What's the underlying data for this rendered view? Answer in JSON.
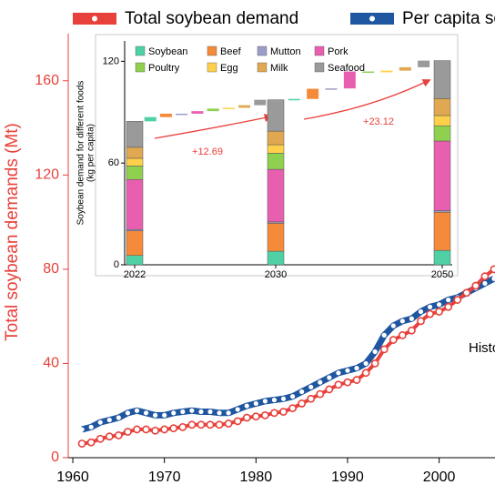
{
  "chart_data": [
    {
      "type": "line",
      "y_label": "Total soybean demands (Mt)",
      "annotation": "Historical",
      "x": [
        1961,
        1962,
        1963,
        1964,
        1965,
        1966,
        1967,
        1968,
        1969,
        1970,
        1971,
        1972,
        1973,
        1974,
        1975,
        1976,
        1977,
        1978,
        1979,
        1980,
        1981,
        1982,
        1983,
        1984,
        1985,
        1986,
        1987,
        1988,
        1989,
        1990,
        1991,
        1992,
        1993,
        1994,
        1995,
        1996,
        1997,
        1998,
        1999,
        2000,
        2001,
        2002,
        2003,
        2004,
        2005,
        2006
      ],
      "xlim": [
        1959.5,
        2006.1
      ],
      "xticks": [
        1960,
        1970,
        1980,
        1990,
        2000
      ],
      "ylim": [
        0,
        180
      ],
      "yticks": [
        0,
        40,
        80,
        120,
        160
      ],
      "series": [
        {
          "name": "Total soybean demand",
          "color": "#e8403a",
          "values": [
            6,
            6.5,
            8,
            9,
            9.5,
            11,
            12,
            12,
            11.5,
            12,
            12.5,
            13,
            14,
            14,
            14,
            14,
            14.5,
            15.5,
            17,
            17.5,
            18,
            19,
            19.5,
            21,
            23,
            25,
            27,
            29,
            31,
            32,
            33,
            36,
            40,
            46,
            50,
            52,
            54,
            58,
            61,
            62,
            64,
            67,
            70,
            73,
            77,
            80
          ]
        },
        {
          "name": "Per capita soybean demand",
          "color": "#1f56a0",
          "values": [
            12,
            13,
            15,
            16,
            17,
            19,
            20,
            19,
            18,
            18,
            19,
            19.5,
            20,
            19.5,
            19.5,
            19,
            19,
            20.5,
            22,
            23,
            24,
            24.5,
            25,
            26,
            28,
            30,
            32,
            34,
            36,
            37,
            38,
            40,
            45,
            52,
            56,
            58,
            59,
            62,
            64,
            65,
            67,
            68,
            70,
            72,
            74,
            76
          ]
        }
      ]
    },
    {
      "type": "bar",
      "stacked": true,
      "y_label": [
        "Soybean demand for different foods",
        "(kg per capita)"
      ],
      "categories": [
        "2022",
        "2030",
        "2050"
      ],
      "ylim": [
        0,
        132
      ],
      "yticks": [
        0,
        60,
        120
      ],
      "annotations": [
        "+12.69",
        "+23.12"
      ],
      "series": [
        {
          "name": "Soybean",
          "color": "#4fd1a5",
          "values": [
            5.5,
            8,
            8.5
          ]
        },
        {
          "name": "Beef",
          "color": "#f58a3a",
          "values": [
            14.5,
            16.5,
            22.5
          ]
        },
        {
          "name": "Mutton",
          "color": "#9c9cc8",
          "values": [
            0.8,
            0.8,
            1
          ]
        },
        {
          "name": "Pork",
          "color": "#e85fb0",
          "values": [
            29.5,
            31,
            41
          ]
        },
        {
          "name": "Poultry",
          "color": "#8fd14f",
          "values": [
            8,
            9.5,
            9
          ]
        },
        {
          "name": "Egg",
          "color": "#ffd04a",
          "values": [
            4.5,
            5,
            6
          ]
        },
        {
          "name": "Milk",
          "color": "#e0a850",
          "values": [
            6.5,
            8,
            10
          ]
        },
        {
          "name": "Seafood",
          "color": "#9a9a9a",
          "values": [
            15.3,
            18.5,
            22.4
          ]
        }
      ]
    }
  ]
}
